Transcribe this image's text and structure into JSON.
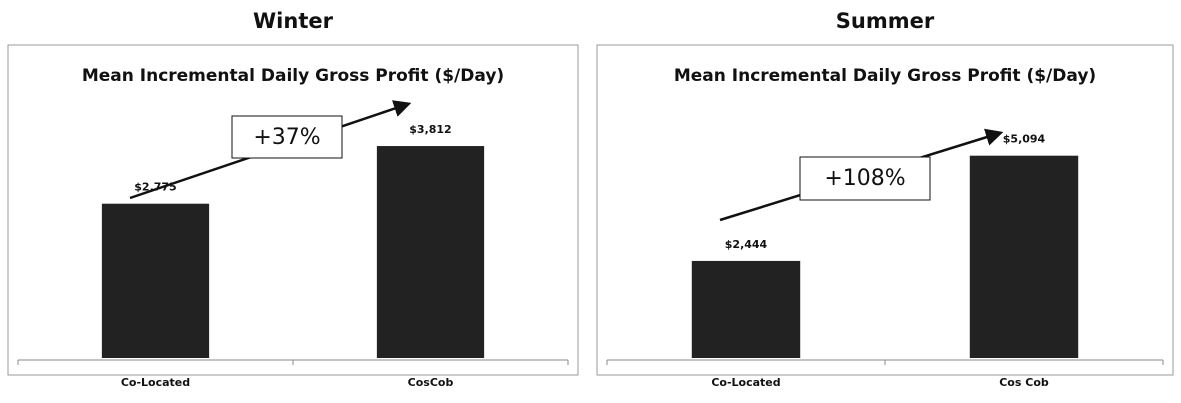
{
  "chart_data": [
    {
      "type": "bar",
      "heading": "Winter",
      "title": "Mean Incremental Daily Gross Profit ($/Day)",
      "annotation": "+37%",
      "categories": [
        "Co-Located",
        "CosCob"
      ],
      "values": [
        2775,
        3812
      ],
      "value_labels": [
        "$2,775",
        "$3,812"
      ],
      "color": "#222222",
      "ylim": [
        0,
        5000
      ]
    },
    {
      "type": "bar",
      "heading": "Summer",
      "title": "Mean Incremental Daily Gross Profit ($/Day)",
      "annotation": "+108%",
      "categories": [
        "Co-Located",
        "Cos Cob"
      ],
      "values": [
        2444,
        5094
      ],
      "value_labels": [
        "$2,444",
        "$5,094"
      ],
      "color": "#222222",
      "ylim": [
        0,
        7000
      ]
    }
  ]
}
